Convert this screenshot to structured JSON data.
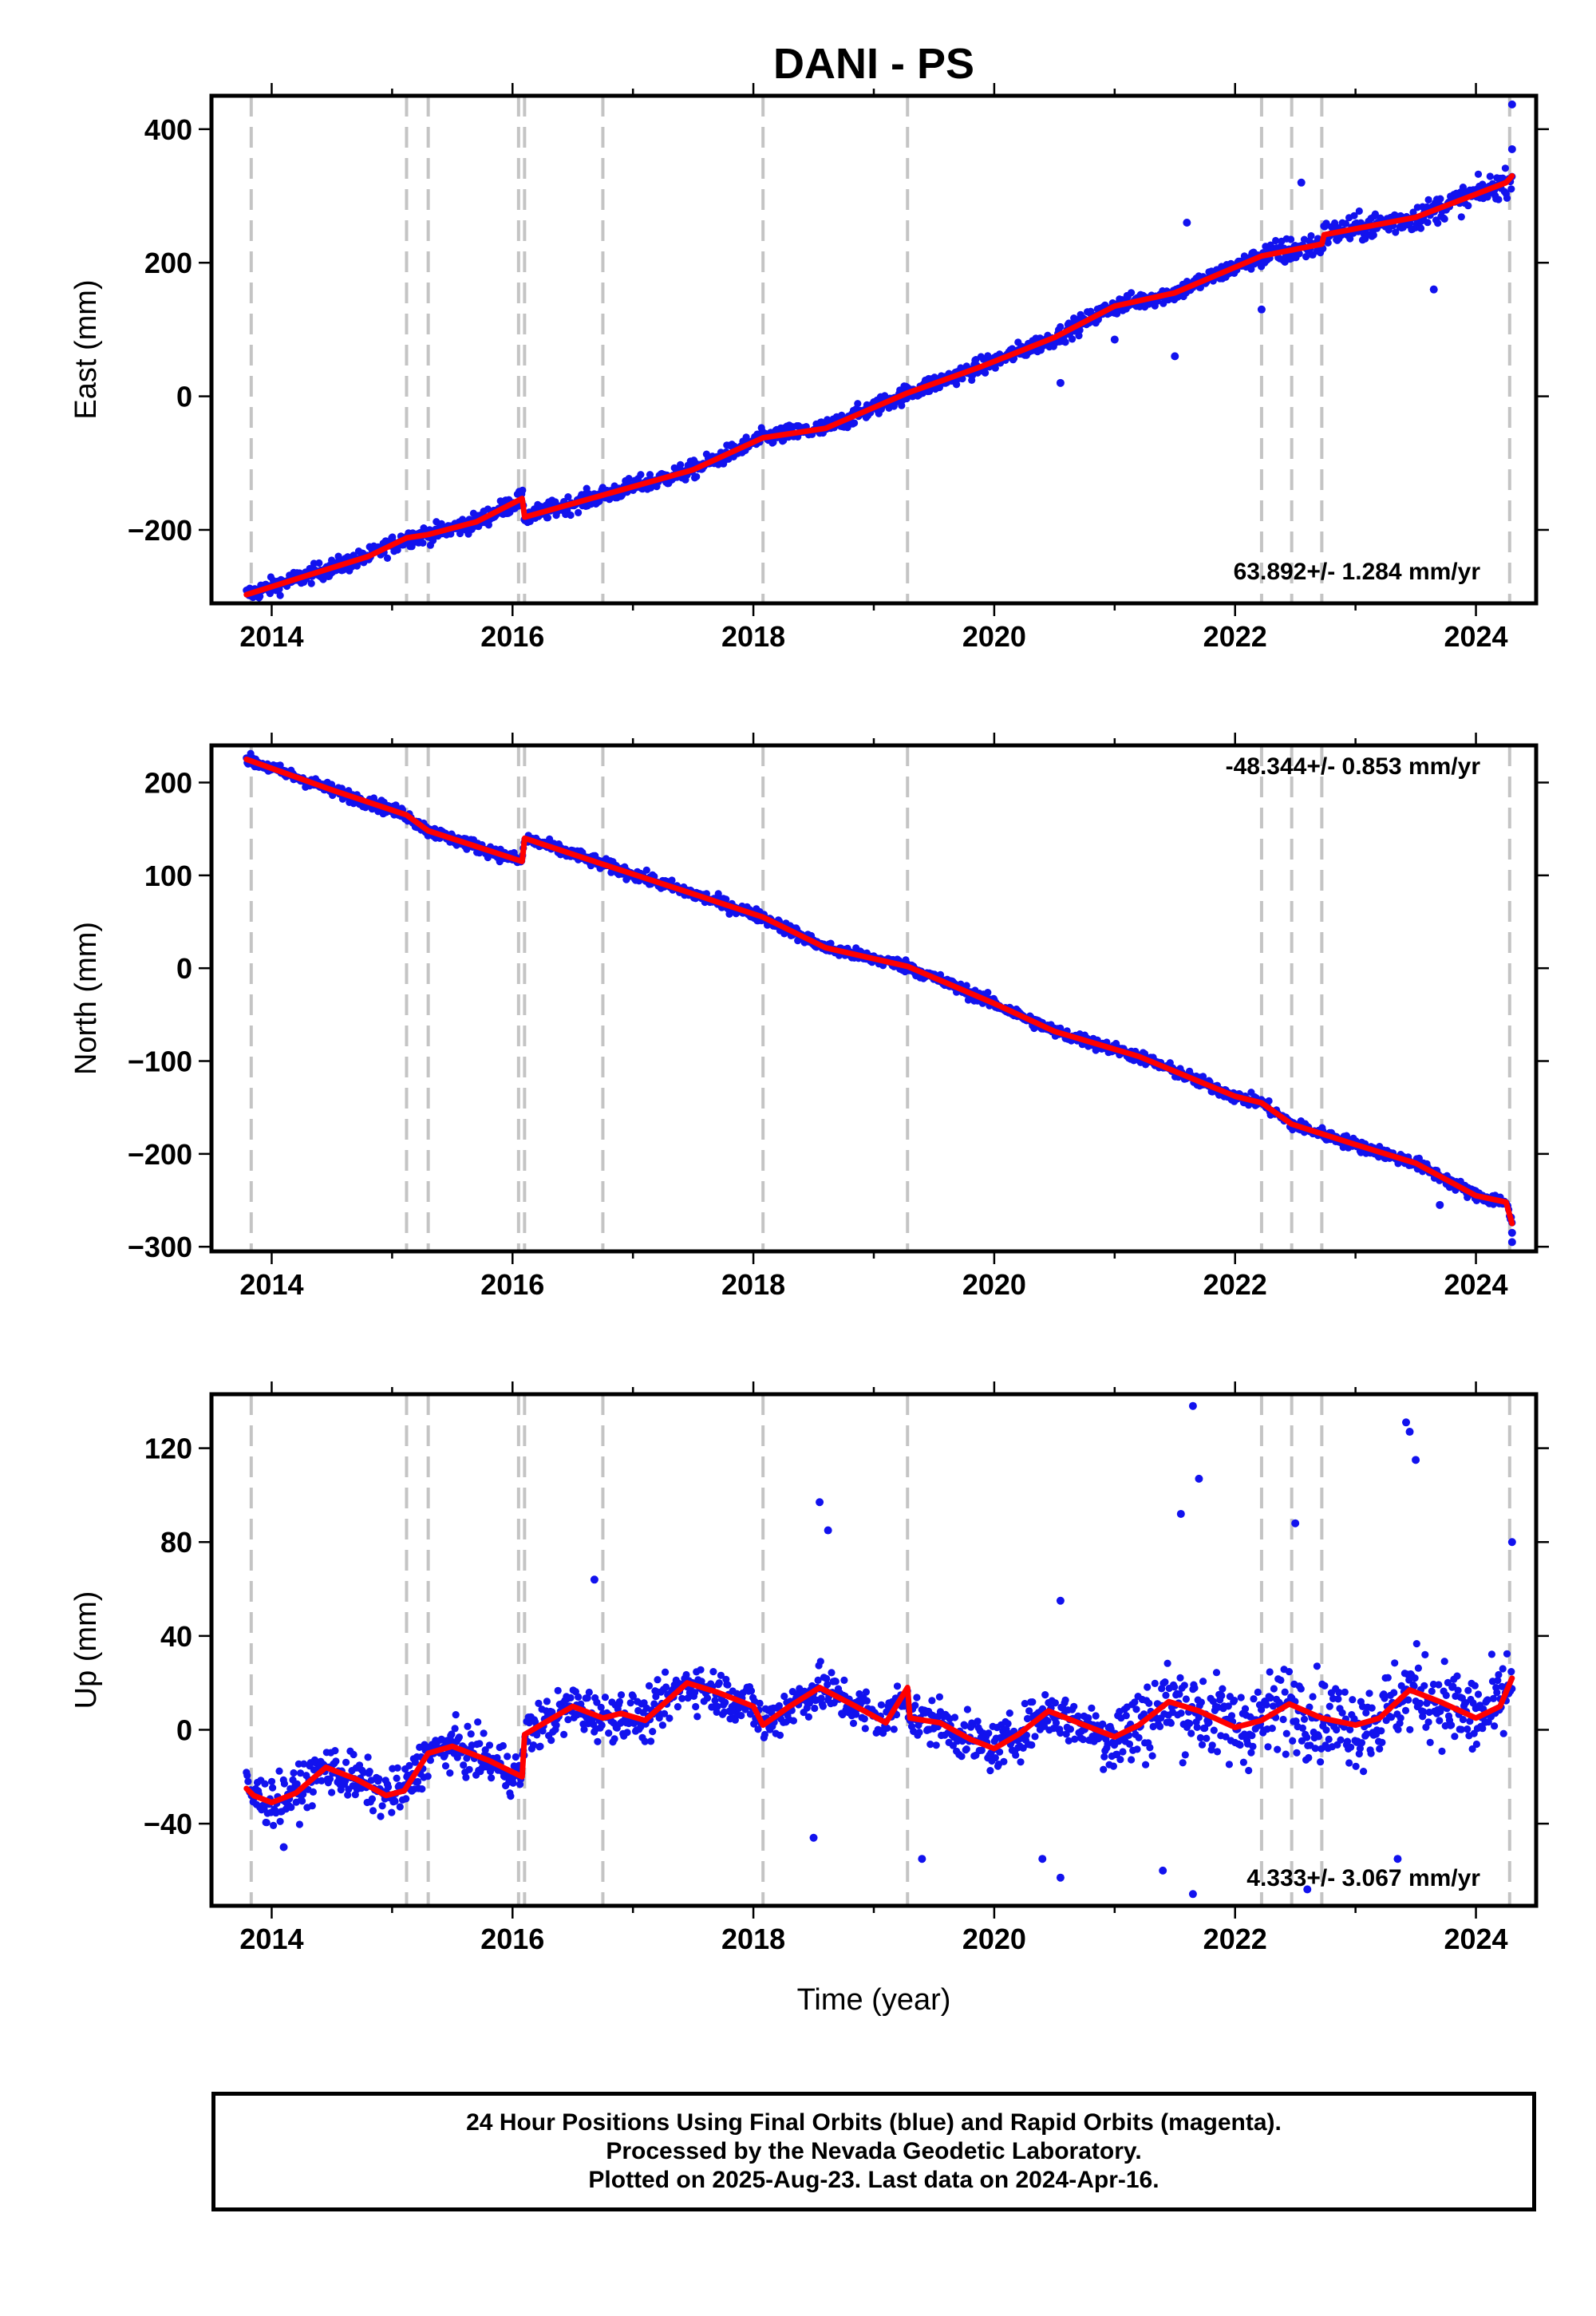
{
  "figure_title": "DANI - PS",
  "xlabel": "Time (year)",
  "footer": {
    "line1": "24 Hour Positions Using Final Orbits (blue) and Rapid Orbits (magenta).",
    "line2": "Processed by the Nevada Geodetic Laboratory.",
    "line3": "Plotted on 2025-Aug-23. Last data on 2024-Apr-16."
  },
  "colors": {
    "final_orbits": "#1212ee",
    "model_fit": "#ff0000",
    "event_lines": "#c4c4c4"
  },
  "chart_data": [
    {
      "type": "scatter",
      "panel": "east",
      "ylabel": "East (mm)",
      "xlim": [
        2013.5,
        2024.5
      ],
      "ylim": [
        -310,
        450
      ],
      "xticks": [
        2014,
        2016,
        2018,
        2020,
        2022,
        2024
      ],
      "yticks": [
        -200,
        0,
        200,
        400
      ],
      "rate_label": "63.892+/- 1.284 mm/yr",
      "event_lines": [
        2013.83,
        2015.12,
        2015.3,
        2016.05,
        2016.1,
        2016.75,
        2018.08,
        2019.28,
        2022.22,
        2022.47,
        2022.72,
        2024.28
      ],
      "fit_series": [
        {
          "x": 2013.79,
          "y": -297
        },
        {
          "x": 2014.3,
          "y": -268
        },
        {
          "x": 2014.8,
          "y": -240
        },
        {
          "x": 2015.12,
          "y": -212
        },
        {
          "x": 2015.3,
          "y": -207
        },
        {
          "x": 2015.7,
          "y": -188
        },
        {
          "x": 2016.08,
          "y": -153
        },
        {
          "x": 2016.1,
          "y": -181
        },
        {
          "x": 2016.75,
          "y": -148
        },
        {
          "x": 2017.5,
          "y": -110
        },
        {
          "x": 2018.08,
          "y": -62
        },
        {
          "x": 2018.6,
          "y": -48
        },
        {
          "x": 2019.28,
          "y": 5
        },
        {
          "x": 2019.9,
          "y": 45
        },
        {
          "x": 2020.5,
          "y": 88
        },
        {
          "x": 2021.0,
          "y": 135
        },
        {
          "x": 2021.5,
          "y": 155
        },
        {
          "x": 2022.22,
          "y": 210
        },
        {
          "x": 2022.72,
          "y": 228
        },
        {
          "x": 2022.74,
          "y": 242
        },
        {
          "x": 2023.5,
          "y": 268
        },
        {
          "x": 2024.25,
          "y": 320
        },
        {
          "x": 2024.3,
          "y": 330
        }
      ],
      "noise_mm": 12,
      "outliers": [
        {
          "x": 2022.22,
          "y": 130
        },
        {
          "x": 2022.55,
          "y": 320
        },
        {
          "x": 2023.65,
          "y": 160
        },
        {
          "x": 2024.3,
          "y": 437
        },
        {
          "x": 2020.55,
          "y": 20
        },
        {
          "x": 2021.5,
          "y": 60
        },
        {
          "x": 2021.0,
          "y": 85
        },
        {
          "x": 2021.6,
          "y": 260
        },
        {
          "x": 2024.3,
          "y": 370
        }
      ]
    },
    {
      "type": "scatter",
      "panel": "north",
      "ylabel": "North (mm)",
      "xlim": [
        2013.5,
        2024.5
      ],
      "ylim": [
        -305,
        240
      ],
      "xticks": [
        2014,
        2016,
        2018,
        2020,
        2022,
        2024
      ],
      "yticks": [
        -300,
        -200,
        -100,
        0,
        100,
        200
      ],
      "rate_label": "-48.344+/- 0.853 mm/yr",
      "event_lines": [
        2013.83,
        2015.12,
        2015.3,
        2016.05,
        2016.1,
        2016.75,
        2018.08,
        2019.28,
        2022.22,
        2022.47,
        2022.72,
        2024.28
      ],
      "fit_series": [
        {
          "x": 2013.79,
          "y": 225
        },
        {
          "x": 2014.5,
          "y": 192
        },
        {
          "x": 2015.12,
          "y": 165
        },
        {
          "x": 2015.3,
          "y": 148
        },
        {
          "x": 2016.08,
          "y": 115
        },
        {
          "x": 2016.1,
          "y": 140
        },
        {
          "x": 2016.75,
          "y": 112
        },
        {
          "x": 2017.5,
          "y": 80
        },
        {
          "x": 2018.08,
          "y": 55
        },
        {
          "x": 2018.6,
          "y": 22
        },
        {
          "x": 2019.28,
          "y": 2
        },
        {
          "x": 2020.0,
          "y": -38
        },
        {
          "x": 2020.5,
          "y": -68
        },
        {
          "x": 2021.2,
          "y": -95
        },
        {
          "x": 2022.0,
          "y": -138
        },
        {
          "x": 2022.22,
          "y": -145
        },
        {
          "x": 2022.47,
          "y": -168
        },
        {
          "x": 2023.0,
          "y": -190
        },
        {
          "x": 2023.5,
          "y": -210
        },
        {
          "x": 2024.0,
          "y": -245
        },
        {
          "x": 2024.25,
          "y": -252
        },
        {
          "x": 2024.3,
          "y": -275
        }
      ],
      "noise_mm": 6,
      "outliers": [
        {
          "x": 2024.3,
          "y": -295
        },
        {
          "x": 2024.3,
          "y": -285
        },
        {
          "x": 2023.7,
          "y": -255
        }
      ]
    },
    {
      "type": "scatter",
      "panel": "up",
      "ylabel": "Up (mm)",
      "xlim": [
        2013.5,
        2024.5
      ],
      "ylim": [
        -75,
        143
      ],
      "xticks": [
        2014,
        2016,
        2018,
        2020,
        2022,
        2024
      ],
      "yticks": [
        -40,
        0,
        40,
        80,
        120
      ],
      "rate_label": "4.333+/- 3.067 mm/yr",
      "event_lines": [
        2013.83,
        2015.12,
        2015.3,
        2016.05,
        2016.1,
        2016.75,
        2018.08,
        2019.28,
        2022.22,
        2022.47,
        2022.72,
        2024.28
      ],
      "fit_series": [
        {
          "x": 2013.79,
          "y": -25
        },
        {
          "x": 2013.85,
          "y": -28
        },
        {
          "x": 2014.0,
          "y": -31
        },
        {
          "x": 2014.2,
          "y": -27
        },
        {
          "x": 2014.45,
          "y": -16
        },
        {
          "x": 2014.7,
          "y": -21
        },
        {
          "x": 2014.95,
          "y": -28
        },
        {
          "x": 2015.1,
          "y": -26
        },
        {
          "x": 2015.3,
          "y": -10
        },
        {
          "x": 2015.5,
          "y": -7
        },
        {
          "x": 2015.8,
          "y": -13
        },
        {
          "x": 2016.08,
          "y": -20
        },
        {
          "x": 2016.1,
          "y": -2
        },
        {
          "x": 2016.3,
          "y": 4
        },
        {
          "x": 2016.5,
          "y": 10
        },
        {
          "x": 2016.75,
          "y": 5
        },
        {
          "x": 2016.9,
          "y": 7
        },
        {
          "x": 2017.1,
          "y": 4
        },
        {
          "x": 2017.45,
          "y": 20
        },
        {
          "x": 2017.7,
          "y": 16
        },
        {
          "x": 2018.0,
          "y": 10
        },
        {
          "x": 2018.08,
          "y": 2
        },
        {
          "x": 2018.3,
          "y": 10
        },
        {
          "x": 2018.55,
          "y": 18
        },
        {
          "x": 2018.85,
          "y": 10
        },
        {
          "x": 2019.1,
          "y": 3
        },
        {
          "x": 2019.28,
          "y": 18
        },
        {
          "x": 2019.3,
          "y": 5
        },
        {
          "x": 2019.55,
          "y": 3
        },
        {
          "x": 2019.8,
          "y": -4
        },
        {
          "x": 2020.0,
          "y": -8
        },
        {
          "x": 2020.2,
          "y": -2
        },
        {
          "x": 2020.45,
          "y": 8
        },
        {
          "x": 2020.7,
          "y": 3
        },
        {
          "x": 2021.0,
          "y": -3
        },
        {
          "x": 2021.2,
          "y": 2
        },
        {
          "x": 2021.45,
          "y": 12
        },
        {
          "x": 2021.7,
          "y": 8
        },
        {
          "x": 2022.0,
          "y": 1
        },
        {
          "x": 2022.22,
          "y": 4
        },
        {
          "x": 2022.45,
          "y": 11
        },
        {
          "x": 2022.72,
          "y": 5
        },
        {
          "x": 2023.0,
          "y": 2
        },
        {
          "x": 2023.2,
          "y": 5
        },
        {
          "x": 2023.45,
          "y": 17
        },
        {
          "x": 2023.7,
          "y": 12
        },
        {
          "x": 2024.0,
          "y": 5
        },
        {
          "x": 2024.2,
          "y": 10
        },
        {
          "x": 2024.3,
          "y": 22
        }
      ],
      "noise_mm": 9,
      "outliers": [
        {
          "x": 2021.65,
          "y": 138
        },
        {
          "x": 2021.7,
          "y": 107
        },
        {
          "x": 2023.42,
          "y": 131
        },
        {
          "x": 2023.45,
          "y": 127
        },
        {
          "x": 2023.5,
          "y": 115
        },
        {
          "x": 2018.55,
          "y": 97
        },
        {
          "x": 2018.62,
          "y": 85
        },
        {
          "x": 2021.55,
          "y": 92
        },
        {
          "x": 2022.5,
          "y": 88
        },
        {
          "x": 2016.68,
          "y": 64
        },
        {
          "x": 2020.55,
          "y": 55
        },
        {
          "x": 2024.3,
          "y": 80
        },
        {
          "x": 2018.5,
          "y": -46
        },
        {
          "x": 2019.4,
          "y": -55
        },
        {
          "x": 2020.55,
          "y": -63
        },
        {
          "x": 2021.65,
          "y": -70
        },
        {
          "x": 2022.6,
          "y": -68
        },
        {
          "x": 2014.1,
          "y": -50
        },
        {
          "x": 2020.4,
          "y": -55
        },
        {
          "x": 2023.35,
          "y": -55
        },
        {
          "x": 2021.4,
          "y": -60
        }
      ]
    }
  ]
}
